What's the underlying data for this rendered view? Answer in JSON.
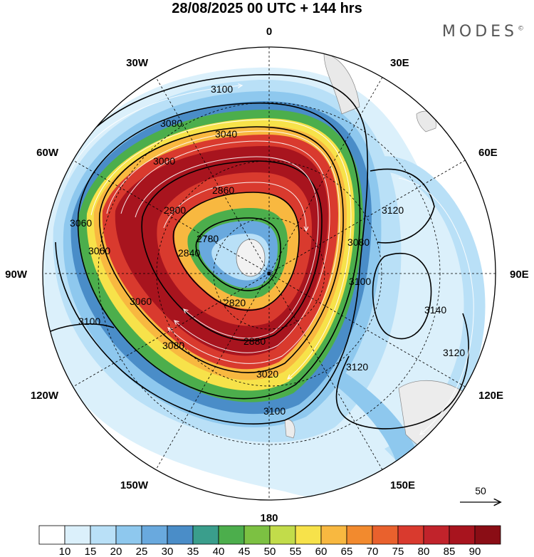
{
  "header": {
    "title": "28/08/2025  00 UTC  + 144 hrs",
    "brand": "MODES",
    "brand_mark": "©"
  },
  "map": {
    "projection": "south-polar-stereographic",
    "longitude_labels": [
      {
        "text": "0",
        "lon": 0
      },
      {
        "text": "30E",
        "lon": 30
      },
      {
        "text": "60E",
        "lon": 60
      },
      {
        "text": "90E",
        "lon": 90
      },
      {
        "text": "120E",
        "lon": 120
      },
      {
        "text": "150E",
        "lon": 150
      },
      {
        "text": "180",
        "lon": 180
      },
      {
        "text": "150W",
        "lon": -150
      },
      {
        "text": "120W",
        "lon": -120
      },
      {
        "text": "90W",
        "lon": -90
      },
      {
        "text": "60W",
        "lon": -60
      },
      {
        "text": "30W",
        "lon": -30
      }
    ],
    "contour_labels": [
      "3100",
      "3080",
      "3040",
      "3020",
      "2900",
      "2860",
      "2840",
      "2820",
      "2880",
      "3120",
      "3140",
      "3000",
      "3060",
      "2780"
    ],
    "vector_reference": "50"
  },
  "colorbar": {
    "labels": [
      "10",
      "15",
      "20",
      "25",
      "30",
      "35",
      "40",
      "45",
      "50",
      "55",
      "60",
      "65",
      "70",
      "75",
      "80",
      "85",
      "90"
    ],
    "colors": [
      "#ffffff",
      "#dbf0fb",
      "#b9e0f7",
      "#8ec8ee",
      "#69a9de",
      "#4a8dc8",
      "#3a9e8c",
      "#4cae4c",
      "#7cc142",
      "#c2dc4a",
      "#f7e24a",
      "#f8b840",
      "#f28a2e",
      "#e9612d",
      "#d93a2e",
      "#c1232b",
      "#a8141e",
      "#8a0d15"
    ]
  }
}
